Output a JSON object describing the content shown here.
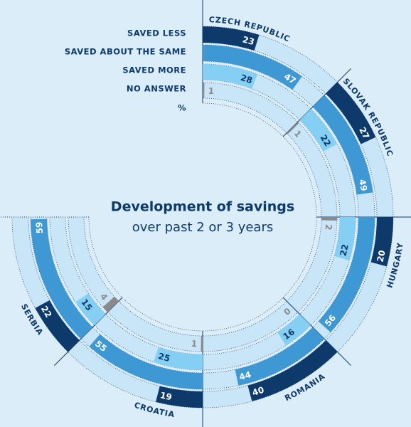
{
  "chart_data": {
    "type": "radial_bar",
    "title": "Development of savings",
    "subtitle": "over past 2 or 3 years",
    "unit": "%",
    "categories": [
      "CZECH REPUBLIC",
      "SLOVAK REPUBLIC",
      "HUNGARY",
      "ROMANIA",
      "CROATIA",
      "SERBIA"
    ],
    "series": [
      {
        "name": "SAVED LESS",
        "color": "#0d3a6b",
        "values": [
          23,
          27,
          20,
          40,
          19,
          22
        ]
      },
      {
        "name": "SAVED ABOUT THE SAME",
        "color": "#3d98d4",
        "values": [
          47,
          49,
          56,
          44,
          55,
          59
        ]
      },
      {
        "name": "SAVED MORE",
        "color": "#86cff4",
        "values": [
          28,
          22,
          22,
          16,
          25,
          15
        ]
      },
      {
        "name": "NO ANSWER",
        "color": "#8a8a8a",
        "values": [
          1,
          1,
          2,
          0,
          1,
          4
        ]
      }
    ]
  }
}
